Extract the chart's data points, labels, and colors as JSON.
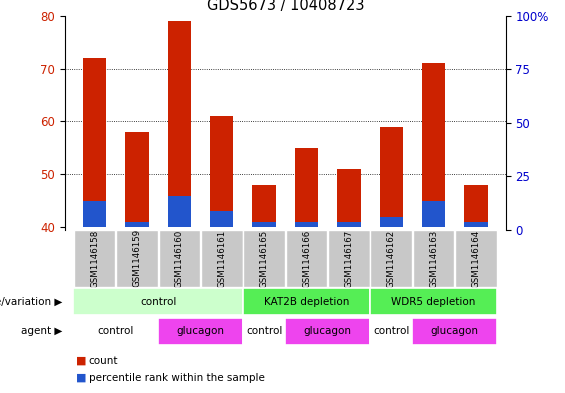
{
  "title": "GDS5673 / 10408723",
  "samples": [
    "GSM1146158",
    "GSM1146159",
    "GSM1146160",
    "GSM1146161",
    "GSM1146165",
    "GSM1146166",
    "GSM1146167",
    "GSM1146162",
    "GSM1146163",
    "GSM1146164"
  ],
  "count_values": [
    72,
    58,
    79,
    61,
    48,
    55,
    51,
    59,
    71,
    48
  ],
  "percentile_values": [
    45,
    41,
    46,
    43,
    41,
    41,
    41,
    42,
    45,
    41
  ],
  "bar_baseline": 40,
  "ylim_left": [
    39.5,
    80
  ],
  "ylim_right": [
    0,
    100
  ],
  "yticks_left": [
    40,
    50,
    60,
    70,
    80
  ],
  "yticks_right": [
    0,
    25,
    50,
    75,
    100
  ],
  "ytick_labels_right": [
    "0",
    "25",
    "50",
    "75",
    "100%"
  ],
  "count_color": "#cc2200",
  "percentile_color": "#2255cc",
  "bar_width": 0.55,
  "bg_color": "#ffffff",
  "plot_bg": "#ffffff",
  "genotype_groups": [
    {
      "label": "control",
      "start": 0,
      "end": 4,
      "color": "#ccffcc"
    },
    {
      "label": "KAT2B depletion",
      "start": 4,
      "end": 7,
      "color": "#55ee55"
    },
    {
      "label": "WDR5 depletion",
      "start": 7,
      "end": 10,
      "color": "#55ee55"
    }
  ],
  "agent_groups": [
    {
      "label": "control",
      "start": 0,
      "end": 2,
      "color": "#ffffff"
    },
    {
      "label": "glucagon",
      "start": 2,
      "end": 4,
      "color": "#ee44ee"
    },
    {
      "label": "control",
      "start": 4,
      "end": 5,
      "color": "#ffffff"
    },
    {
      "label": "glucagon",
      "start": 5,
      "end": 7,
      "color": "#ee44ee"
    },
    {
      "label": "control",
      "start": 7,
      "end": 8,
      "color": "#ffffff"
    },
    {
      "label": "glucagon",
      "start": 8,
      "end": 10,
      "color": "#ee44ee"
    }
  ],
  "legend_count_label": "count",
  "legend_pct_label": "percentile rank within the sample",
  "xlabel_genotype": "genotype/variation",
  "xlabel_agent": "agent",
  "tick_label_color_left": "#cc2200",
  "tick_label_color_right": "#0000cc",
  "sample_bg_color": "#c8c8c8",
  "figsize": [
    5.65,
    3.93
  ],
  "dpi": 100
}
